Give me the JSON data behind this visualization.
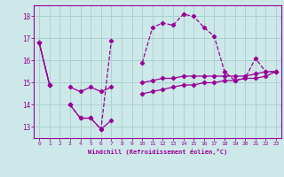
{
  "xlabel": "Windchill (Refroidissement éolien,°C)",
  "hours": [
    0,
    1,
    2,
    3,
    4,
    5,
    6,
    7,
    8,
    9,
    10,
    11,
    12,
    13,
    14,
    15,
    16,
    17,
    18,
    19,
    20,
    21,
    22,
    23
  ],
  "temp_line": [
    16.8,
    14.9,
    null,
    14.0,
    13.4,
    13.4,
    12.9,
    16.9,
    null,
    null,
    15.9,
    17.5,
    17.7,
    17.6,
    18.1,
    18.0,
    17.5,
    17.1,
    15.5,
    15.1,
    15.2,
    16.1,
    15.5,
    15.5
  ],
  "windchill_upper": [
    16.8,
    14.9,
    null,
    14.8,
    14.6,
    14.8,
    14.6,
    14.8,
    null,
    null,
    15.0,
    15.1,
    15.2,
    15.2,
    15.3,
    15.3,
    15.3,
    15.3,
    15.3,
    15.3,
    15.3,
    15.4,
    15.5,
    15.5
  ],
  "windchill_lower": [
    16.8,
    14.9,
    null,
    14.0,
    13.4,
    13.4,
    12.9,
    13.3,
    null,
    null,
    14.5,
    14.6,
    14.7,
    14.8,
    14.9,
    14.9,
    15.0,
    15.0,
    15.1,
    15.1,
    15.2,
    15.2,
    15.3,
    15.5
  ],
  "line_color": "#990099",
  "bg_color": "#cce8e8",
  "grid_color": "#aacccc",
  "ylim": [
    12.5,
    18.5
  ],
  "yticks": [
    13,
    14,
    15,
    16,
    17,
    18
  ],
  "xticks": [
    0,
    1,
    2,
    3,
    4,
    5,
    6,
    7,
    8,
    9,
    10,
    11,
    12,
    13,
    14,
    15,
    16,
    17,
    18,
    19,
    20,
    21,
    22,
    23
  ]
}
